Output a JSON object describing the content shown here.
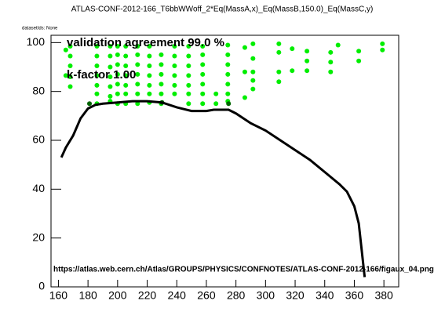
{
  "chart_data": {
    "type": "scatter",
    "title": "ATLAS-CONF-2012-166_T6bbWWoff_2*Eq(MassA,x)_Eq(MassB,150.0)_Eq(MassC,y)",
    "subtitle": "datasetIds: None",
    "annotations": [
      "validation agreement 99.0 %",
      "k-factor 1.00",
      "https://atlas.web.cern.ch/Atlas/GROUPS/PHYSICS/CONFNOTES/ATLAS-CONF-2012-166/figaux_04.png"
    ],
    "xlim": [
      155,
      390
    ],
    "ylim": [
      0,
      103
    ],
    "xticks": [
      160,
      180,
      200,
      220,
      240,
      260,
      280,
      300,
      320,
      340,
      360,
      380
    ],
    "yticks": [
      0,
      20,
      40,
      60,
      80,
      100
    ],
    "series": [
      {
        "type": "scatter",
        "color": "#00ee00",
        "x": [
          165,
          165,
          168,
          168,
          168,
          168,
          168,
          186,
          186,
          186,
          186,
          186,
          186,
          186,
          195,
          195,
          195,
          195,
          195,
          195,
          195,
          200,
          200,
          200,
          200,
          200,
          200,
          200,
          205.5,
          205.5,
          205.5,
          205.5,
          205.5,
          205.5,
          205.5,
          213.5,
          213.5,
          213.5,
          213.5,
          213.5,
          213.5,
          213.5,
          221.5,
          221.5,
          221.5,
          221.5,
          221.5,
          221.5,
          221.5,
          229.5,
          229.5,
          229.5,
          229.5,
          229.5,
          229.5,
          238.5,
          238.5,
          238.5,
          238.5,
          238.5,
          238.5,
          248,
          248,
          248,
          248,
          248,
          248,
          248,
          257.5,
          257.5,
          257.5,
          257.5,
          257.5,
          257.5,
          257.5,
          266.5,
          266.5,
          274.5,
          274.5,
          274.5,
          274.5,
          274.5,
          274.5,
          274.5,
          286,
          286,
          286,
          291.5,
          291.5,
          291.5,
          291.5,
          291.5,
          309,
          309,
          309,
          309,
          318,
          318,
          328,
          328,
          328,
          344,
          344,
          344,
          349,
          363,
          363,
          379,
          379
        ],
        "values": [
          97,
          86.5,
          98.5,
          94.5,
          90.5,
          86,
          82,
          98.5,
          94.5,
          90.5,
          86.5,
          82.5,
          79,
          75,
          98.5,
          94.5,
          90,
          86,
          82,
          78,
          76,
          75,
          79,
          83,
          87,
          91,
          95,
          98.5,
          98.5,
          94.5,
          90.5,
          86.5,
          82.5,
          79,
          75,
          75,
          79,
          83,
          87,
          91,
          95,
          98.5,
          98.5,
          94.5,
          90.5,
          86.5,
          82.5,
          79,
          75.5,
          75,
          79,
          83,
          87,
          91,
          95,
          98.5,
          94.5,
          90.5,
          86.5,
          82.5,
          79,
          75,
          98.5,
          94.5,
          90.5,
          86.5,
          82.5,
          79,
          75,
          79,
          83,
          87,
          91,
          95,
          98.5,
          75,
          79,
          99,
          95,
          91,
          87,
          83,
          79,
          76,
          98,
          88,
          77.5,
          99.5,
          93.5,
          88,
          84.5,
          81,
          99.5,
          96,
          88,
          84,
          97.5,
          88.5,
          96.5,
          92.5,
          88.5,
          96,
          92,
          88,
          99,
          96.5,
          92.5,
          99.5,
          97
        ]
      },
      {
        "type": "scatter",
        "color": "#006400",
        "x": [
          181,
          230,
          275
        ],
        "values": [
          75,
          75.5,
          75
        ]
      },
      {
        "type": "line",
        "color": "#000000",
        "x": [
          162,
          165,
          170,
          175,
          180,
          185,
          190,
          200,
          210,
          220,
          230,
          240,
          250,
          260,
          265,
          275,
          280,
          290,
          300,
          310,
          320,
          330,
          340,
          350,
          355,
          360,
          363,
          365,
          367
        ],
        "values": [
          53,
          57,
          62,
          69,
          73,
          74.5,
          75,
          75.5,
          76,
          76,
          75.5,
          73.5,
          72,
          72,
          72.5,
          72.5,
          71,
          67,
          64,
          60,
          56,
          52,
          47,
          42,
          39,
          33,
          26,
          15,
          4
        ]
      }
    ]
  }
}
